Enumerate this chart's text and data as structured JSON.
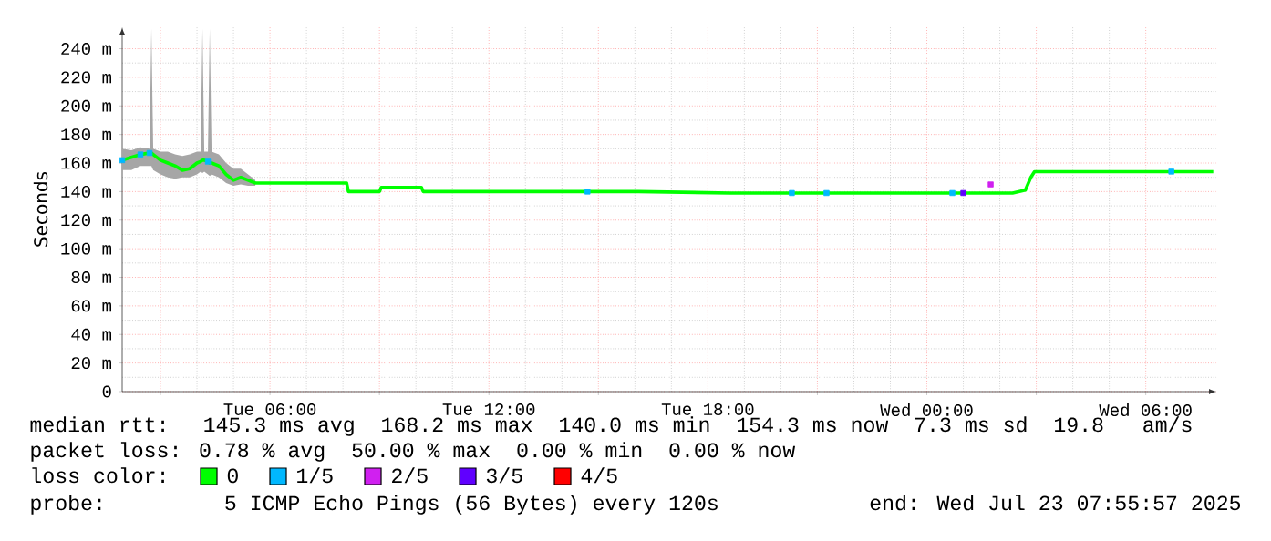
{
  "chart_data": {
    "type": "line",
    "ylabel": "Seconds",
    "legend_title": "loss color:",
    "legend": "bottom",
    "grid": true,
    "xlim": [
      "2025-07-22T01:57",
      "2025-07-23T07:56"
    ],
    "ylim": [
      0,
      255
    ],
    "xticks": [
      {
        "value": "2025-07-22T03:00",
        "label": null
      },
      {
        "value": "2025-07-22T06:00",
        "label": "Tue 06:00"
      },
      {
        "value": "2025-07-22T09:00",
        "label": null
      },
      {
        "value": "2025-07-22T12:00",
        "label": "Tue 12:00"
      },
      {
        "value": "2025-07-22T15:00",
        "label": null
      },
      {
        "value": "2025-07-22T18:00",
        "label": "Tue 18:00"
      },
      {
        "value": "2025-07-22T21:00",
        "label": null
      },
      {
        "value": "2025-07-23T00:00",
        "label": "Wed 00:00"
      },
      {
        "value": "2025-07-23T03:00",
        "label": null
      },
      {
        "value": "2025-07-23T06:00",
        "label": "Wed 06:00"
      }
    ],
    "yticks": [
      {
        "value": 0,
        "label": "0"
      },
      {
        "value": 20,
        "label": "20 m"
      },
      {
        "value": 40,
        "label": "40 m"
      },
      {
        "value": 60,
        "label": "60 m"
      },
      {
        "value": 80,
        "label": "80 m"
      },
      {
        "value": 100,
        "label": "100 m"
      },
      {
        "value": 120,
        "label": "120 m"
      },
      {
        "value": 140,
        "label": "140 m"
      },
      {
        "value": 160,
        "label": "160 m"
      },
      {
        "value": 180,
        "label": "180 m"
      },
      {
        "value": 200,
        "label": "200 m"
      },
      {
        "value": 220,
        "label": "220 m"
      },
      {
        "value": 240,
        "label": "240 m"
      }
    ],
    "series": [
      {
        "name": "0",
        "color": "#00ff00",
        "x": [
          "2025-07-22T01:57",
          "2025-07-22T02:12",
          "2025-07-22T02:27",
          "2025-07-22T02:42",
          "2025-07-22T02:45",
          "2025-07-22T02:48",
          "2025-07-22T03:00",
          "2025-07-22T03:12",
          "2025-07-22T03:24",
          "2025-07-22T03:36",
          "2025-07-22T03:48",
          "2025-07-22T04:00",
          "2025-07-22T04:06",
          "2025-07-22T04:09",
          "2025-07-22T04:12",
          "2025-07-22T04:18",
          "2025-07-22T04:21",
          "2025-07-22T04:24",
          "2025-07-22T04:36",
          "2025-07-22T04:48",
          "2025-07-22T05:00",
          "2025-07-22T05:12",
          "2025-07-22T05:24",
          "2025-07-22T05:36",
          "2025-07-22T08:06",
          "2025-07-22T08:09",
          "2025-07-22T09:00",
          "2025-07-22T09:03",
          "2025-07-22T10:09",
          "2025-07-22T10:12",
          "2025-07-22T14:36",
          "2025-07-22T16:06",
          "2025-07-22T18:36",
          "2025-07-22T23:36",
          "2025-07-23T02:21",
          "2025-07-23T02:42",
          "2025-07-23T02:51",
          "2025-07-23T02:57",
          "2025-07-23T05:36",
          "2025-07-23T07:51"
        ],
        "values": [
          162,
          164,
          166,
          167,
          167,
          166,
          162,
          160,
          158,
          155,
          156,
          160,
          161,
          162,
          162,
          161,
          160,
          160,
          158,
          152,
          148,
          150,
          148,
          146,
          146,
          140,
          140,
          143,
          143,
          140,
          140,
          140,
          139,
          139,
          139,
          141,
          150,
          154,
          154,
          154
        ],
        "upper": [
          170,
          169,
          171,
          170,
          254,
          170,
          168,
          168,
          166,
          165,
          166,
          168,
          168,
          254,
          168,
          168,
          254,
          168,
          166,
          160,
          156,
          156,
          152,
          148,
          null,
          null,
          null,
          null,
          null,
          null,
          null,
          null,
          null,
          null,
          null,
          null,
          null,
          null,
          null,
          null
        ],
        "lower": [
          155,
          155,
          158,
          158,
          158,
          155,
          152,
          150,
          149,
          150,
          150,
          152,
          154,
          153,
          154,
          152,
          151,
          152,
          150,
          146,
          144,
          145,
          144,
          144,
          null,
          null,
          null,
          null,
          null,
          null,
          null,
          null,
          null,
          null,
          null,
          null,
          null,
          null,
          null,
          null
        ]
      },
      {
        "name": "1/5",
        "type": "scatter",
        "marker": "square",
        "color": "#00b8ff",
        "x": [
          "2025-07-22T01:57",
          "2025-07-22T02:27",
          "2025-07-22T02:42",
          "2025-07-22T04:18",
          "2025-07-22T14:42",
          "2025-07-22T20:18",
          "2025-07-22T21:15",
          "2025-07-23T00:42",
          "2025-07-23T06:42"
        ],
        "values": [
          162,
          166,
          167,
          161,
          140,
          139,
          139,
          139,
          154
        ]
      },
      {
        "name": "2/5",
        "type": "scatter",
        "marker": "square",
        "color": "#d020f0",
        "x": [
          "2025-07-23T01:45"
        ],
        "values": [
          145
        ]
      },
      {
        "name": "3/5",
        "type": "scatter",
        "marker": "square",
        "color": "#6000ff",
        "x": [
          "2025-07-23T01:00"
        ],
        "values": [
          139
        ]
      },
      {
        "name": "4/5",
        "type": "scatter",
        "color": "#ff0000"
      }
    ],
    "annotations": [
      "median rtt:  145.3 ms avg  168.2 ms max  140.0 ms min  154.3 ms now  7.3 ms sd  19.8   am/s",
      "packet loss: 0.78 % avg  50.00 % max  0.00 % min  0.00 % now",
      "probe:       5 ICMP Echo Pings (56 Bytes) every 120s",
      "end: Wed Jul 23 07:55:57 2025"
    ]
  }
}
